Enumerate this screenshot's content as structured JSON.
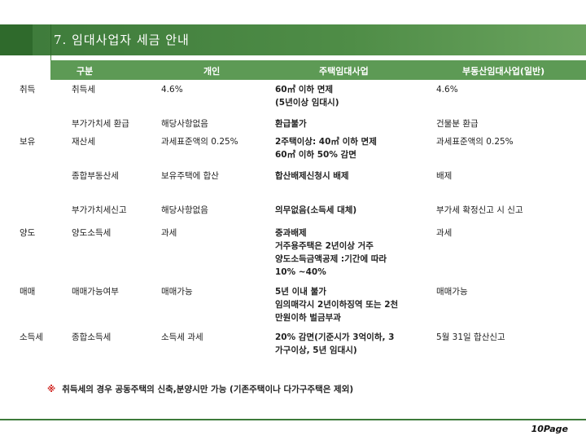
{
  "title": "7. 임대사업자 세금 안내",
  "table": {
    "headers": [
      "구분",
      "개인",
      "주택임대사업",
      "부동산임대사업(일반)"
    ],
    "rows": [
      {
        "category": "취득",
        "item": "취득세",
        "personal": "4.6%",
        "housing": [
          "60㎡ 이하 면제",
          "(5년이상 임대시)"
        ],
        "general": [
          "4.6%"
        ],
        "housing_bold": true
      },
      {
        "category": "",
        "item": "부가가치세 환급",
        "personal": "해당사항없음",
        "housing": [
          "환급불가"
        ],
        "general": [
          "건물분 환급"
        ],
        "housing_bold": true
      },
      {
        "category": "보유",
        "item": "재산세",
        "personal": "과세표준액의 0.25%",
        "housing": [
          "2주택이상: 40㎡ 이하 면제",
          "60㎡ 이하 50% 감면"
        ],
        "general": [
          "과세표준액의 0.25%"
        ],
        "housing_bold": true
      },
      {
        "category": "",
        "item": "종합부동산세",
        "personal": "보유주택에 합산",
        "housing": [
          "합산배제신청시 배제"
        ],
        "general": [
          "배제"
        ],
        "housing_bold": true
      },
      {
        "category": "",
        "item": "부가가치세신고",
        "personal": "해당사항없음",
        "housing": [
          "의무없음(소득세 대체)"
        ],
        "general": [
          "부가세 확정신고 시 신고"
        ],
        "housing_bold": true
      },
      {
        "category": "양도",
        "item": "양도소득세",
        "personal": "과세",
        "housing": [
          "중과배제",
          "거주용주택은 2년이상 거주",
          "양도소득금액공제 :기간에 따라",
          "10% ~40%"
        ],
        "general": [
          "과세"
        ],
        "housing_bold": true
      },
      {
        "category": "매매",
        "item": "매매가능여부",
        "personal": "매매가능",
        "housing": [
          "5년 이내 불가",
          "임의매각시 2년이하징역 또는 2천",
          "만원이하 벌금부과"
        ],
        "general": [
          "매매가능"
        ],
        "housing_bold": true
      },
      {
        "category": "소득세",
        "item": "종합소득세",
        "personal": "소득세 과세",
        "housing": [
          "20% 감면(기준시가 3억이하, 3",
          "가구이상, 5년 임대시)"
        ],
        "general": [
          "5월 31일 합산신고"
        ],
        "housing_bold": true
      }
    ]
  },
  "note": {
    "mark": "※",
    "text": "취득세의 경우 공동주택의 신축,분양시만 가능 (기존주택이나 다가구주택은 제외)"
  },
  "page": "10Page",
  "colors": {
    "accent": "#4f8d47",
    "header": "#5d9a55",
    "note_mark": "#d0201c"
  }
}
